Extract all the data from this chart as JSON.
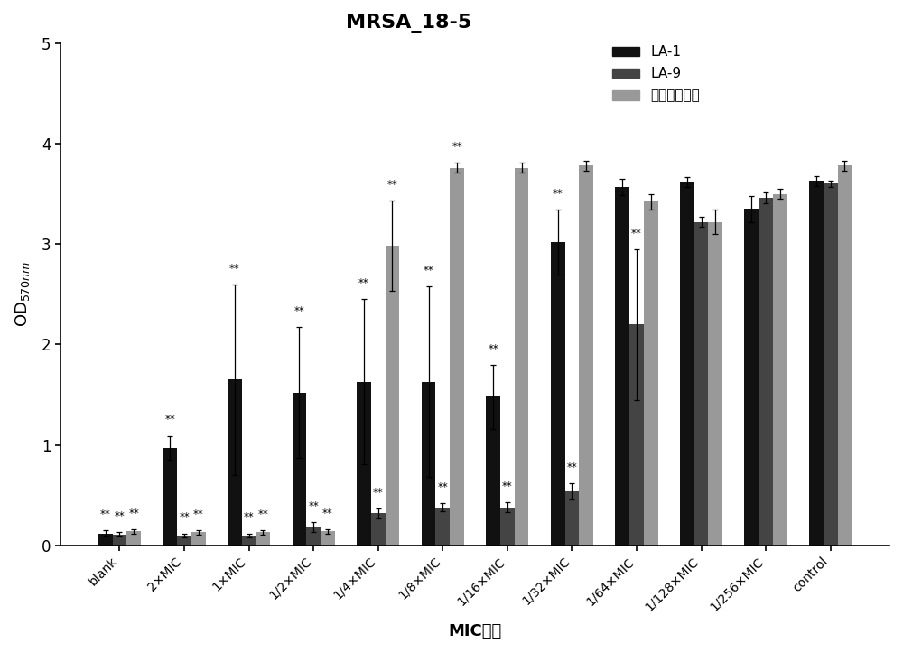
{
  "title": "MRSA_18-5",
  "xlabel": "MIC倍数",
  "categories": [
    "blank",
    "2×MIC",
    "1×MIC",
    "1/2×MIC",
    "1/4×MIC",
    "1/8×MIC",
    "1/16×MIC",
    "1/32×MIC",
    "1/64×MIC",
    "1/128×MIC",
    "1/256×MIC",
    "control"
  ],
  "LA1_values": [
    0.12,
    0.97,
    1.65,
    1.52,
    1.63,
    1.63,
    1.48,
    3.02,
    3.57,
    3.62,
    3.35,
    3.63
  ],
  "LA1_errors": [
    0.03,
    0.12,
    0.95,
    0.65,
    0.82,
    0.95,
    0.32,
    0.32,
    0.08,
    0.05,
    0.13,
    0.05
  ],
  "LA9_values": [
    0.11,
    0.1,
    0.1,
    0.18,
    0.32,
    0.38,
    0.38,
    0.54,
    2.2,
    3.22,
    3.46,
    3.6
  ],
  "LA9_errors": [
    0.02,
    0.02,
    0.02,
    0.05,
    0.05,
    0.04,
    0.05,
    0.08,
    0.75,
    0.05,
    0.05,
    0.03
  ],
  "gray_values": [
    0.14,
    0.13,
    0.13,
    0.14,
    2.98,
    3.76,
    3.76,
    3.78,
    3.42,
    3.22,
    3.5,
    3.78
  ],
  "gray_errors": [
    0.02,
    0.02,
    0.02,
    0.02,
    0.45,
    0.05,
    0.05,
    0.05,
    0.08,
    0.12,
    0.05,
    0.05
  ],
  "LA1_color": "#111111",
  "LA9_color": "#444444",
  "gray_color": "#999999",
  "ylim": [
    0,
    5
  ],
  "yticks": [
    0,
    1,
    2,
    3,
    4,
    5
  ],
  "legend_labels": [
    "LA-1",
    "LA-9",
    "去甲万古需素"
  ],
  "significance_LA1": [
    true,
    true,
    true,
    true,
    true,
    true,
    true,
    true,
    false,
    false,
    false,
    false
  ],
  "significance_LA9": [
    true,
    true,
    true,
    true,
    true,
    true,
    true,
    true,
    true,
    false,
    false,
    false
  ],
  "significance_gray": [
    true,
    true,
    true,
    true,
    true,
    true,
    false,
    false,
    false,
    false,
    false,
    false
  ]
}
